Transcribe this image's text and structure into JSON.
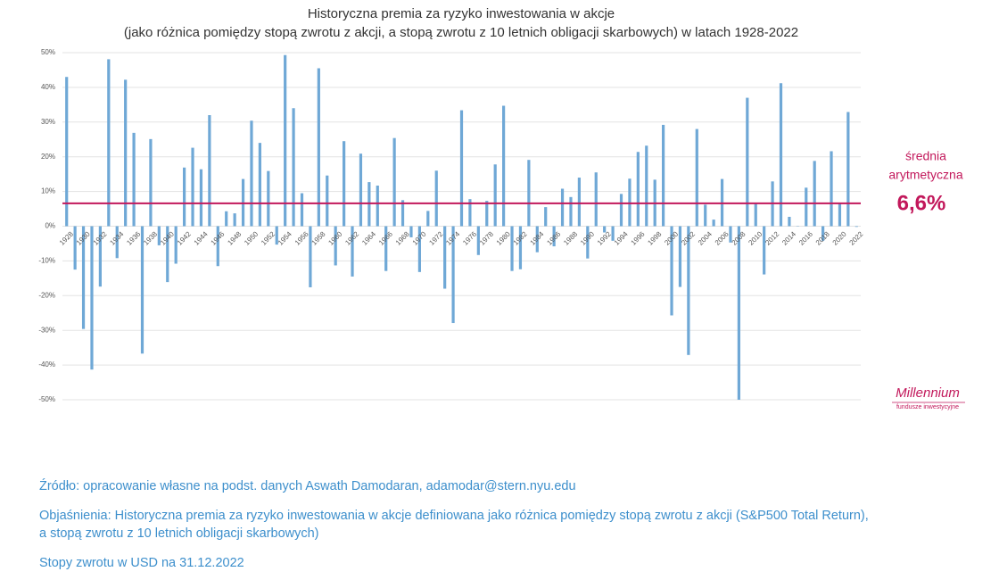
{
  "chart_data": {
    "type": "bar",
    "title": "Historyczna premia za ryzyko inwestowania w akcje",
    "subtitle": "(jako różnica pomiędzy stopą zwrotu z akcji, a stopą zwrotu z 10 letnich obligacji skarbowych) w latach 1928-2022",
    "categories": [
      "1928",
      null,
      "1930",
      null,
      "1932",
      null,
      "1934",
      null,
      "1936",
      null,
      "1938",
      null,
      "1940",
      null,
      "1942",
      null,
      "1944",
      null,
      "1946",
      null,
      "1948",
      null,
      "1950",
      null,
      "1952",
      null,
      "1954",
      null,
      "1956",
      null,
      "1958",
      null,
      "1960",
      null,
      "1962",
      null,
      "1964",
      null,
      "1966",
      null,
      "1968",
      null,
      "1970",
      null,
      "1972",
      null,
      "1974",
      null,
      "1976",
      null,
      "1978",
      null,
      "1980",
      null,
      "1982",
      null,
      "1984",
      null,
      "1986",
      null,
      "1988",
      null,
      "1990",
      null,
      "1992",
      null,
      "1994",
      null,
      "1996",
      null,
      "1998",
      null,
      "2000",
      null,
      "2002",
      null,
      "2004",
      null,
      "2006",
      null,
      "2008",
      null,
      "2010",
      null,
      "2012",
      null,
      "2014",
      null,
      "2016",
      null,
      "2018",
      null,
      "2020",
      null,
      "2022"
    ],
    "values": [
      43,
      -12.5,
      -29.6,
      -41.3,
      -17.4,
      48.1,
      -9.2,
      42.2,
      26.9,
      -36.7,
      25.1,
      -5.5,
      -16.1,
      -10.8,
      16.9,
      22.6,
      16.4,
      32,
      -11.5,
      4.3,
      3.7,
      13.6,
      30.4,
      24,
      15.9,
      -5.3,
      49.3,
      34,
      9.5,
      -17.6,
      45.5,
      14.6,
      -11.3,
      24.5,
      -14.5,
      20.9,
      12.7,
      11.7,
      -12.9,
      25.4,
      7.5,
      -3.2,
      -13.2,
      4.4,
      16,
      -18,
      -27.9,
      33.4,
      7.8,
      -8.3,
      7.3,
      17.8,
      34.7,
      -12.9,
      -12.4,
      19.1,
      -7.5,
      5.5,
      -5.8,
      10.8,
      8.4,
      14,
      -9.3,
      15.5,
      -1.8,
      -4.2,
      9.3,
      13.7,
      21.4,
      23.2,
      13.4,
      29.2,
      -25.7,
      -17.5,
      -37.1,
      28,
      6.2,
      1.9,
      13.6,
      -4.7,
      -50,
      37,
      6.4,
      -13.9,
      12.9,
      41.2,
      2.7,
      0.1,
      11.1,
      18.8,
      -4.2,
      21.6,
      6.7,
      32.9,
      -0.2
    ],
    "color": "#6fa8d6",
    "ylim": [
      -50,
      50
    ],
    "yticks": [
      {
        "value": -50,
        "label": "-50%"
      },
      {
        "value": -40,
        "label": "-40%"
      },
      {
        "value": -30,
        "label": "-30%"
      },
      {
        "value": -20,
        "label": "-20%"
      },
      {
        "value": -10,
        "label": "-10%"
      },
      {
        "value": 0,
        "label": "0%"
      },
      {
        "value": 10,
        "label": "10%"
      },
      {
        "value": 20,
        "label": "20%"
      },
      {
        "value": 30,
        "label": "30%"
      },
      {
        "value": 40,
        "label": "40%"
      },
      {
        "value": 50,
        "label": "50%"
      }
    ],
    "grid": true,
    "mean": {
      "value": 6.6,
      "label": "6,6%",
      "color": "#c2185b",
      "caption": [
        "średnia",
        "arytmetyczna"
      ]
    }
  },
  "logo": {
    "name": "Millennium",
    "tagline": "fundusze inwestycyjne"
  },
  "notes": [
    "Źródło: opracowanie własne na podst. danych Aswath Damodaran, adamodar@stern.nyu.edu",
    "Objaśnienia: Historyczna premia za ryzyko inwestowania w akcje definiowana jako różnica pomiędzy stopą zwrotu z akcji (S&P500 Total Return),",
    "a stopą zwrotu z 10 letnich obligacji skarbowych)",
    "Stopy zwrotu w USD na 31.12.2022"
  ]
}
